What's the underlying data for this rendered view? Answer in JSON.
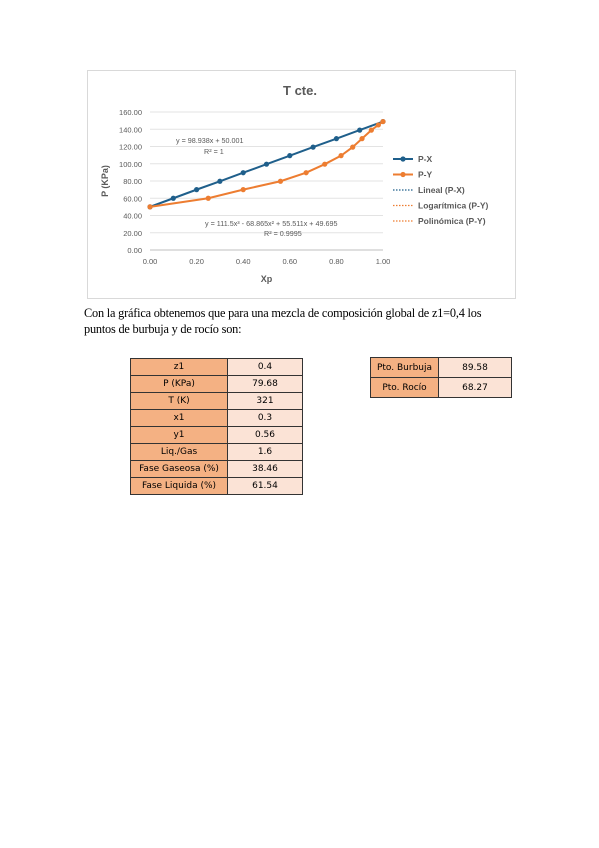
{
  "chart_data": {
    "type": "scatter",
    "title": "T cte.",
    "xlabel": "Xp",
    "ylabel": "P (KPa)",
    "xlim": [
      0,
      1
    ],
    "ylim": [
      0,
      160
    ],
    "xticks": [
      "0.00",
      "0.20",
      "0.40",
      "0.60",
      "0.80",
      "1.00"
    ],
    "yticks": [
      "0.00",
      "20.00",
      "40.00",
      "60.00",
      "80.00",
      "100.00",
      "120.00",
      "140.00",
      "160.00"
    ],
    "grid": true,
    "legend_position": "right",
    "series": [
      {
        "name": "P-X",
        "color": "#1f5f8b",
        "x": [
          0,
          0.1,
          0.2,
          0.3,
          0.4,
          0.5,
          0.6,
          0.7,
          0.8,
          0.9,
          1.0
        ],
        "y": [
          50,
          60,
          70,
          79.7,
          89.6,
          99.5,
          109.4,
          119.3,
          129.1,
          139,
          148.9
        ]
      },
      {
        "name": "P-Y",
        "color": "#ed7d31",
        "x": [
          0,
          0.25,
          0.4,
          0.56,
          0.67,
          0.75,
          0.82,
          0.87,
          0.91,
          0.95,
          0.98,
          1.0
        ],
        "y": [
          50,
          60,
          70,
          79.7,
          89.6,
          99.5,
          109.4,
          119.3,
          129.1,
          139,
          145,
          148.9
        ]
      }
    ],
    "trendlines": [
      {
        "name": "Lineal (P-X)",
        "color": "#1f5f8b",
        "equation": "y = 98.938x + 50.001",
        "r2": "R² = 1"
      },
      {
        "name": "Logarítmica (P-Y)",
        "color": "#ed7d31"
      },
      {
        "name": "Polinómica (P-Y)",
        "color": "#ed7d31",
        "equation": "y = 111.5x³ - 68.865x² + 55.511x + 49.695",
        "r2": "R² = 0.9995"
      }
    ]
  },
  "paragraph": {
    "line1": "Con la gráfica obtenemos que para una mezcla de composición global de z1=0,4 los",
    "line2": "puntos de burbuja y de rocío son:"
  },
  "params_table": [
    {
      "label": "z1",
      "value": "0.4"
    },
    {
      "label": "P (KPa)",
      "value": "79.68"
    },
    {
      "label": "T (K)",
      "value": "321"
    },
    {
      "label": "x1",
      "value": "0.3"
    },
    {
      "label": "y1",
      "value": "0.56"
    },
    {
      "label": "Liq./Gas",
      "value": "1.6"
    },
    {
      "label": "Fase Gaseosa (%)",
      "value": "38.46"
    },
    {
      "label": "Fase Liquida (%)",
      "value": "61.54"
    }
  ],
  "points_table": [
    {
      "label": "Pto. Burbuja",
      "value": "89.58"
    },
    {
      "label": "Pto. Rocío",
      "value": "68.27"
    }
  ]
}
